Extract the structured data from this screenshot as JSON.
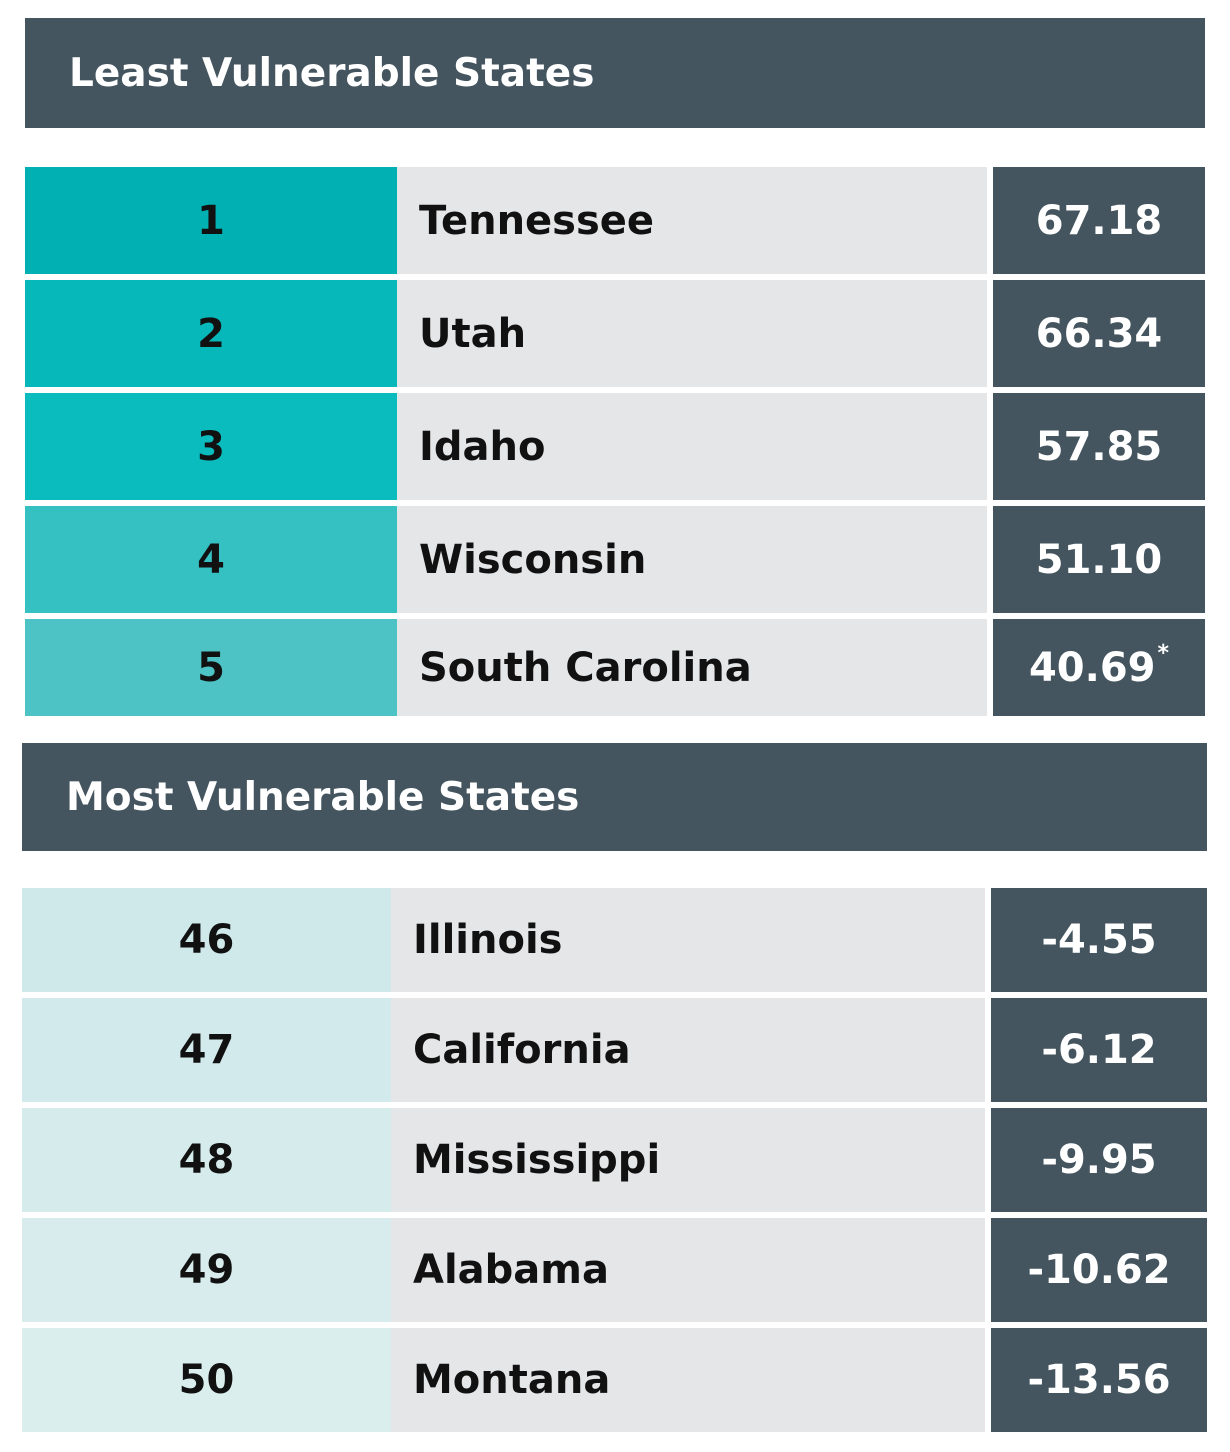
{
  "chart_data": [
    {
      "type": "table",
      "title": "Least Vulnerable States",
      "rows": [
        {
          "rank": "1",
          "state": "Tennessee",
          "score": "67.18",
          "note": "",
          "color": "#00b0b3"
        },
        {
          "rank": "2",
          "state": "Utah",
          "score": "66.34",
          "note": "",
          "color": "#07b8bb"
        },
        {
          "rank": "3",
          "state": "Idaho",
          "score": "57.85",
          "note": "",
          "color": "#0bbcbe"
        },
        {
          "rank": "4",
          "state": "Wisconsin",
          "score": "51.10",
          "note": "",
          "color": "#35c0c2"
        },
        {
          "rank": "5",
          "state": "South Carolina",
          "score": "40.69",
          "note": "*",
          "color": "#4dc3c6"
        }
      ]
    },
    {
      "type": "table",
      "title": "Most Vulnerable States",
      "rows": [
        {
          "rank": "46",
          "state": "Illinois",
          "score": "-4.55",
          "note": "",
          "color": "#cfe9ea"
        },
        {
          "rank": "47",
          "state": "California",
          "score": "-6.12",
          "note": "",
          "color": "#d2eaeb"
        },
        {
          "rank": "48",
          "state": "Mississippi",
          "score": "-9.95",
          "note": "",
          "color": "#d5ebec"
        },
        {
          "rank": "49",
          "state": "Alabama",
          "score": "-10.62",
          "note": "",
          "color": "#d8eced"
        },
        {
          "rank": "50",
          "state": "Montana",
          "score": "-13.56",
          "note": "",
          "color": "#dbeeee"
        }
      ]
    }
  ],
  "colors": {
    "header_bg": "#44555f",
    "state_bg": "#e5e6e8",
    "score_bg": "#44555f"
  }
}
